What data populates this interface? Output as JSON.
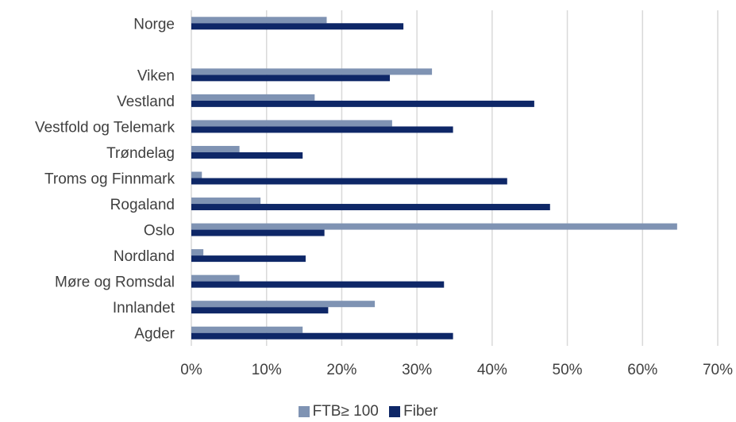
{
  "chart_data": {
    "type": "bar",
    "orientation": "horizontal",
    "categories": [
      "Norge",
      "",
      "Viken",
      "Vestland",
      "Vestfold og Telemark",
      "Trøndelag",
      "Troms og Finnmark",
      "Rogaland",
      "Oslo",
      "Nordland",
      "Møre og Romsdal",
      "Innlandet",
      "Agder"
    ],
    "series": [
      {
        "name": "FTB≥ 100",
        "color": "#7F93B3",
        "values": [
          0.18,
          null,
          0.32,
          0.164,
          0.267,
          0.064,
          0.014,
          0.092,
          0.646,
          0.016,
          0.064,
          0.244,
          0.148
        ]
      },
      {
        "name": "Fiber",
        "color": "#0E2767",
        "values": [
          0.282,
          null,
          0.264,
          0.456,
          0.348,
          0.148,
          0.42,
          0.477,
          0.177,
          0.152,
          0.336,
          0.182,
          0.348
        ]
      }
    ],
    "xlim": [
      0,
      0.7
    ],
    "xticks": [
      "0%",
      "10%",
      "20%",
      "30%",
      "40%",
      "50%",
      "60%",
      "70%"
    ],
    "grid": "vertical",
    "legend_position": "bottom"
  }
}
